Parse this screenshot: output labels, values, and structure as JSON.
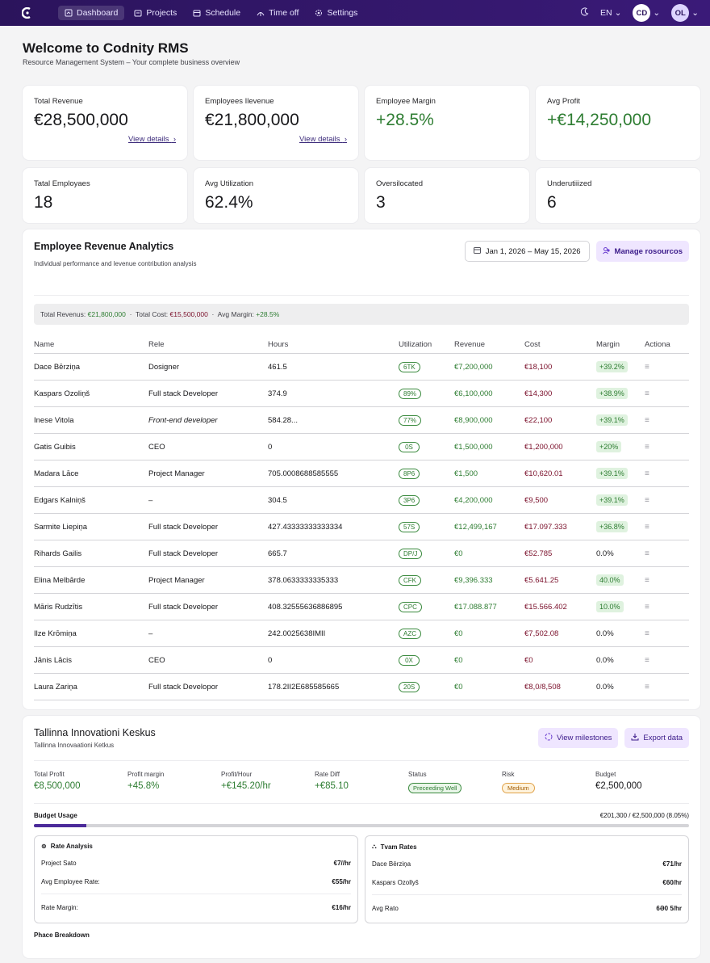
{
  "nav": {
    "items": [
      {
        "label": "Dashboard",
        "icon": "dashboard-icon",
        "active": true
      },
      {
        "label": "Projects",
        "icon": "projects-icon"
      },
      {
        "label": "Schedule",
        "icon": "calendar-icon"
      },
      {
        "label": "Time off",
        "icon": "time-off-icon"
      },
      {
        "label": "Settings",
        "icon": "gear-icon"
      }
    ],
    "language": "EN",
    "avatar1": "CD",
    "avatar2": "OL"
  },
  "header": {
    "title": "Welcome to Codnity RMS",
    "subtitle": "Resource Management System – Your complete business overview"
  },
  "stats_row1": [
    {
      "label": "Total Revenue",
      "value": "€28,500,000",
      "link": "View details"
    },
    {
      "label": "Employees Ilevenue",
      "value": "€21,800,000",
      "link": "View details"
    },
    {
      "label": "Employee Margin",
      "value": "+28.5%"
    },
    {
      "label": "Avg Profit",
      "value": "+€14,250,000"
    }
  ],
  "stats_row2": [
    {
      "label": "Tatal Employaes",
      "value": "18"
    },
    {
      "label": "Avg Utilization",
      "value": "62.4%"
    },
    {
      "label": "Oversilocated",
      "value": "3"
    },
    {
      "label": "Underutiiized",
      "value": "6"
    }
  ],
  "analytics": {
    "title": "Employee Revenue Analytics",
    "subtitle": "Individual performance and levenue contribution analysis",
    "date_range": "Jan 1, 2026 – May 15, 2026",
    "manage_label": "Manage rosourcos",
    "summary": {
      "revenue_label": "Total Revenus:",
      "revenue_value": "€21,800,000",
      "cost_label": "Total Cost:",
      "cost_value": "€15,500,000",
      "margin_label": "Avg Margin:",
      "margin_value": "+28.5%"
    },
    "columns": [
      "Name",
      "Rele",
      "Hours",
      "Utilization",
      "Revenue",
      "Cost",
      "Margin",
      "Actiona"
    ],
    "rows": [
      {
        "name": "Dace Bērziņa",
        "role": "Dosigner",
        "hours": "461.5",
        "util": "6TK",
        "revenue": "€7,200,000",
        "cost": "€18,100",
        "margin": "+39.2%"
      },
      {
        "name": "Kaspars Ozoliņš",
        "role": "Full stack Developer",
        "hours": "374.9",
        "util": "89%",
        "revenue": "€6,100,000",
        "cost": "€14,300",
        "margin": "+38.9%"
      },
      {
        "name": "Inese Vitola",
        "role": "Front-end developer",
        "hours": "584.28...",
        "util": "77%",
        "revenue": "€8,900,000",
        "cost": "€22,100",
        "margin": "+39.1%"
      },
      {
        "name": "Gatis Guibis",
        "role": "CEO",
        "hours": "0",
        "util": "0S",
        "revenue": "€1,500,000",
        "cost": "€1,200,000",
        "margin": "+20%"
      },
      {
        "name": "Madara Lāce",
        "role": "Project Manager",
        "hours": "705.0008688585555",
        "util": "8P6",
        "revenue": "€1,500",
        "cost": "€10,620.01",
        "margin": "+39.1%"
      },
      {
        "name": "Edgars Kalniņš",
        "role": "–",
        "hours": "304.5",
        "util": "3P6",
        "revenue": "€4,200,000",
        "cost": "€9,500",
        "margin": "+39.1%"
      },
      {
        "name": "Sarmite Liepiņa",
        "role": "Full stack Developer",
        "hours": "427.43333333333334",
        "util": "57S",
        "revenue": "€12,499,167",
        "cost": "€17.097.333",
        "margin": "+36.8%"
      },
      {
        "name": "Rihards Gailis",
        "role": "Full stack Developer",
        "hours": "665.7",
        "util": "DP/J",
        "revenue": "€0",
        "cost": "€52.785",
        "margin": "0.0%"
      },
      {
        "name": "Elina Melbārde",
        "role": "Project Manager",
        "hours": "378.0633333335333",
        "util": "CFK",
        "revenue": "€9,396.333",
        "cost": "€5.641.25",
        "margin": "40.0%"
      },
      {
        "name": "Māris Rudzītis",
        "role": "Full stack Developer",
        "hours": "408.32555636886895",
        "util": "CPC",
        "revenue": "€17.088.877",
        "cost": "€15.566.402",
        "margin": "10.0%"
      },
      {
        "name": "Ilze Krōmiņa",
        "role": "–",
        "hours": "242.0025638IMII",
        "util": "AZC",
        "revenue": "€0",
        "cost": "€7,502.08",
        "margin": "0.0%"
      },
      {
        "name": "Jānis Lācis",
        "role": "CEO",
        "hours": "0",
        "util": "0X",
        "revenue": "€0",
        "cost": "€0",
        "margin": "0.0%"
      },
      {
        "name": "Laura Zariņa",
        "role": "Full stack Developor",
        "hours": "178.2II2E685585665",
        "util": "20S",
        "revenue": "€0",
        "cost": "€8,0/8,508",
        "margin": "0.0%"
      }
    ]
  },
  "project": {
    "title": "Tallinna Innovationi Keskus",
    "subtitle": "Tallinna Innovaationi Ketkus",
    "btn_milestones": "View milestones",
    "btn_export": "Export data",
    "kpis": [
      {
        "label": "Total Profit",
        "value": "€8,500,000"
      },
      {
        "label": "Profit margin",
        "value": "+45.8%"
      },
      {
        "label": "Profit/Hour",
        "value": "+€145.20/hr"
      },
      {
        "label": "Rate Diff",
        "value": "+€85.10"
      },
      {
        "label": "Status",
        "value": "Preceeding Well"
      },
      {
        "label": "Risk",
        "value": "Medium"
      },
      {
        "label": "Budget",
        "value": "€2,500,000"
      }
    ],
    "budget_label": "Budget Usage",
    "budget_text": "€201,300 / €2,500,000 (8.05%)",
    "budget_pct": 8.05,
    "rate_analysis": {
      "title": "Rate Analysis",
      "lines": [
        {
          "label": "Project Sato",
          "value": "€7//hr"
        },
        {
          "label": "Avg Employee Rate:",
          "value": "€55/hr"
        },
        {
          "label": "Rate Margin:",
          "value": "€16/hr"
        }
      ]
    },
    "team_rates": {
      "title": "Tvam Rates",
      "lines": [
        {
          "label": "Dace Bērziņa",
          "value": "€71/hr"
        },
        {
          "label": "Kaspars Ozollyš",
          "value": "€60/hr"
        },
        {
          "label": "Avg Rato",
          "value": "6Ə0 5/hr"
        }
      ]
    },
    "phase_label": "Phace Breakdown"
  }
}
